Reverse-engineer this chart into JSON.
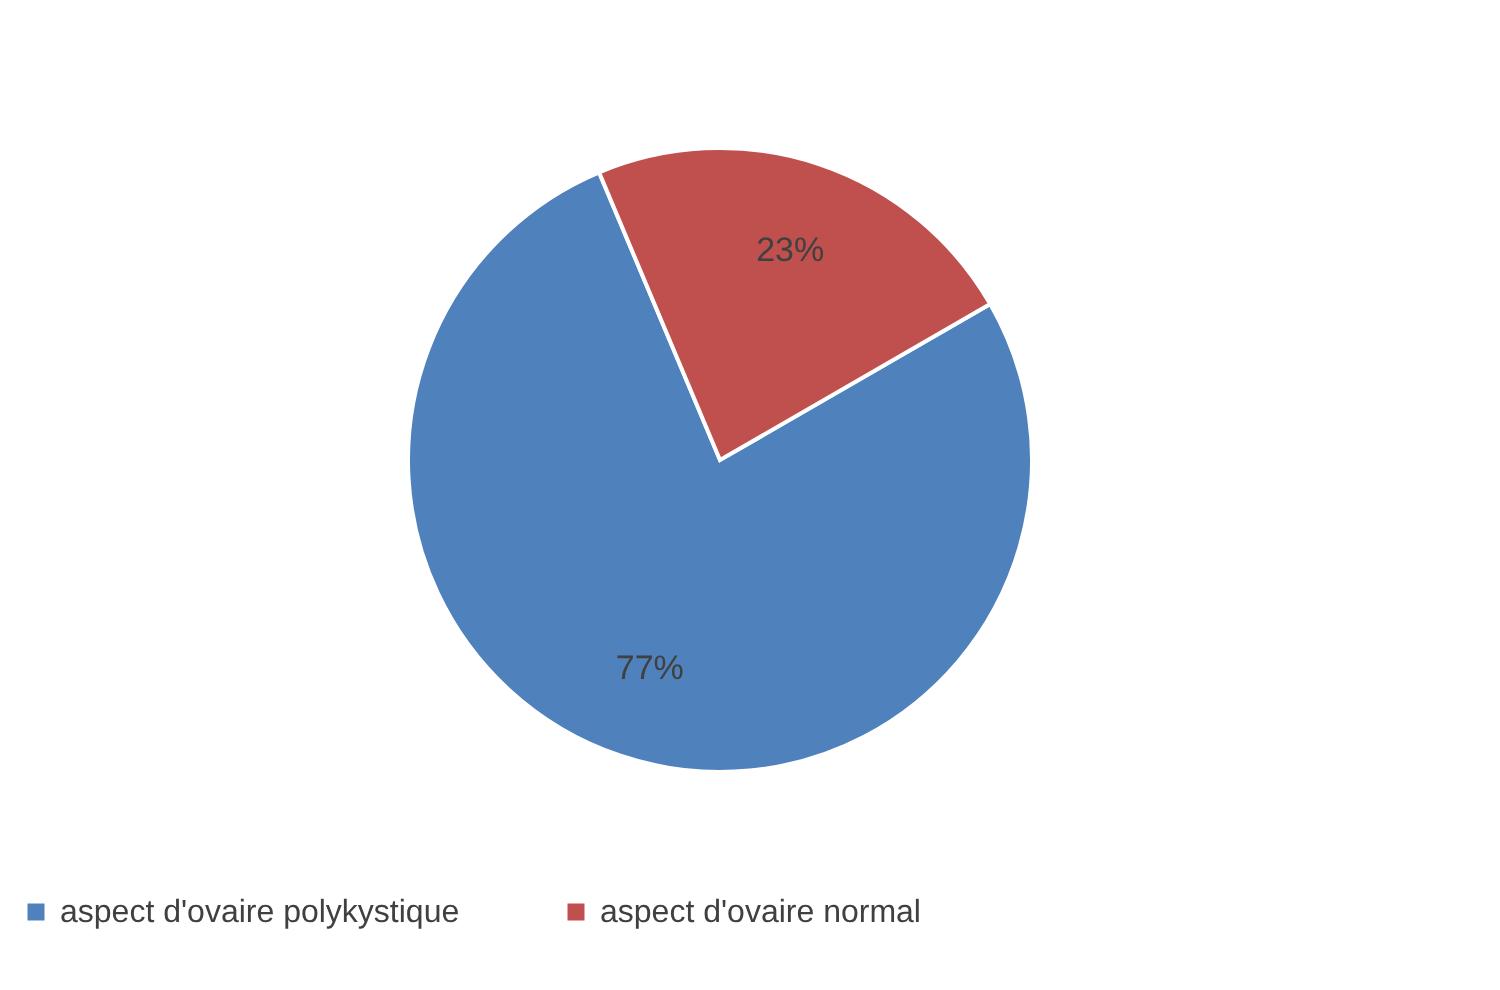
{
  "chart_data": {
    "type": "pie",
    "categories": [
      "aspect d'ovaire polykystique",
      "aspect d'ovaire normal"
    ],
    "values": [
      77,
      23
    ],
    "colors": [
      "#4f81bd",
      "#c0504d"
    ],
    "value_labels": [
      "77%",
      "23%"
    ],
    "legend": "bottom"
  }
}
